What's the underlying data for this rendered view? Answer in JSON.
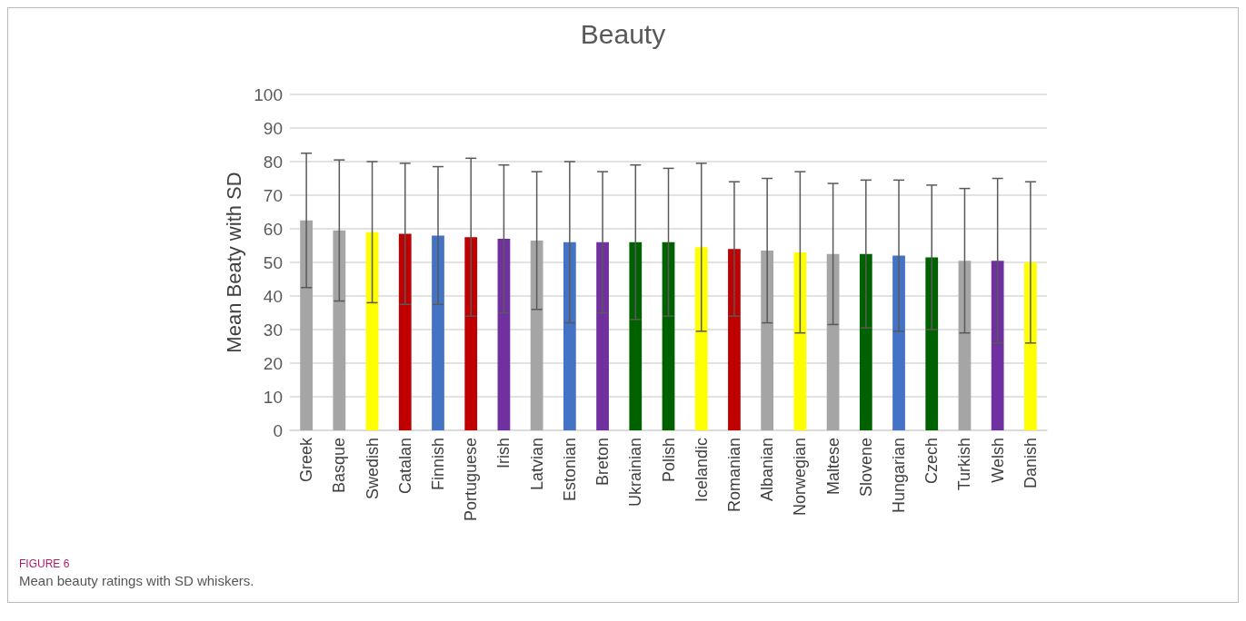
{
  "chart_data": {
    "type": "bar",
    "title": "Beauty",
    "ylabel": "Mean Beaty with SD",
    "categories": [
      "Greek",
      "Basque",
      "Swedish",
      "Catalan",
      "Finnish",
      "Portuguese",
      "Irish",
      "Latvian",
      "Estonian",
      "Breton",
      "Ukrainian",
      "Polish",
      "Icelandic",
      "Romanian",
      "Albanian",
      "Norwegian",
      "Maltese",
      "Slovene",
      "Hungarian",
      "Czech",
      "Turkish",
      "Welsh",
      "Danish"
    ],
    "values": [
      62.5,
      59.5,
      59,
      58.5,
      58,
      57.5,
      57,
      56.5,
      56,
      56,
      56,
      56,
      54.5,
      54,
      53.5,
      53,
      52.5,
      52.5,
      52,
      51.5,
      50.5,
      50.5,
      50
    ],
    "errors": [
      20,
      21,
      21,
      21,
      20.5,
      23.5,
      22,
      20.5,
      24,
      21,
      23,
      22,
      25,
      20,
      21.5,
      24,
      21,
      22,
      22.5,
      21.5,
      21.5,
      24.5,
      24
    ],
    "colors": [
      "#a5a5a5",
      "#a5a5a5",
      "#ffff00",
      "#c00000",
      "#4472c4",
      "#c00000",
      "#7030a0",
      "#a5a5a5",
      "#4472c4",
      "#7030a0",
      "#006100",
      "#006100",
      "#ffff00",
      "#c00000",
      "#a5a5a5",
      "#ffff00",
      "#a5a5a5",
      "#006100",
      "#4472c4",
      "#006100",
      "#a5a5a5",
      "#7030a0",
      "#ffff00"
    ],
    "ylim": [
      0,
      100
    ],
    "yticks": [
      0,
      10,
      20,
      30,
      40,
      50,
      60,
      70,
      80,
      90,
      100
    ],
    "grid": "y",
    "annotations": [
      "FIGURE 6",
      "Mean beauty ratings with SD whiskers."
    ]
  }
}
